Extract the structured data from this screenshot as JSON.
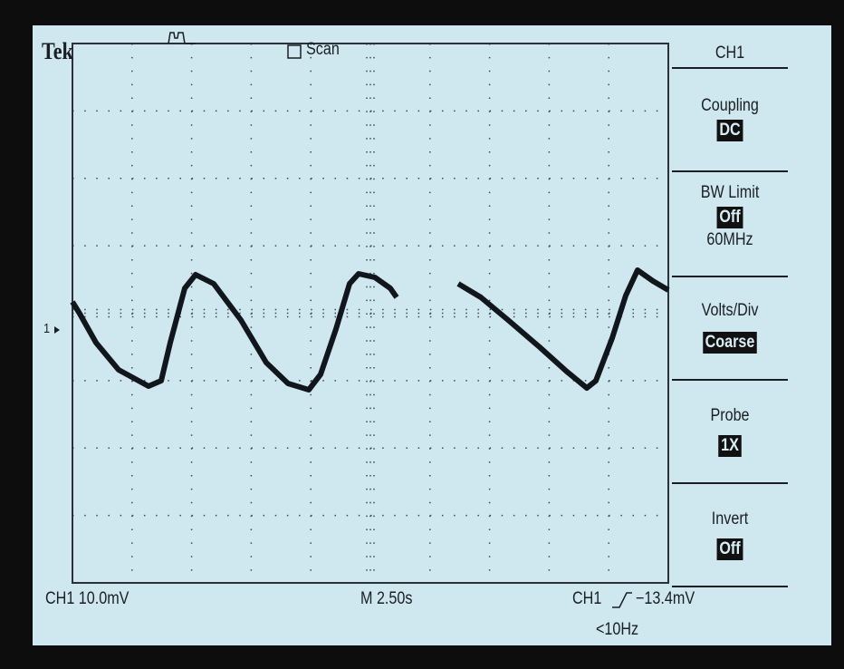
{
  "header": {
    "brand": "Tek",
    "mode": "Scan"
  },
  "marker": "1",
  "menu": {
    "title": "CH1",
    "items": [
      {
        "label": "Coupling",
        "value": "DC"
      },
      {
        "label": "BW Limit",
        "value": "Off",
        "note": "60MHz"
      },
      {
        "label": "Volts/Div",
        "value": "Coarse"
      },
      {
        "label": "Probe",
        "value": "1X"
      },
      {
        "label": "Invert",
        "value": "Off"
      }
    ]
  },
  "footer": {
    "channel_scale": "CH1  10.0mV",
    "timebase": "M 2.50s",
    "trigger_source": "CH1",
    "trigger_level": "−13.4mV",
    "frequency": "<10Hz"
  }
}
